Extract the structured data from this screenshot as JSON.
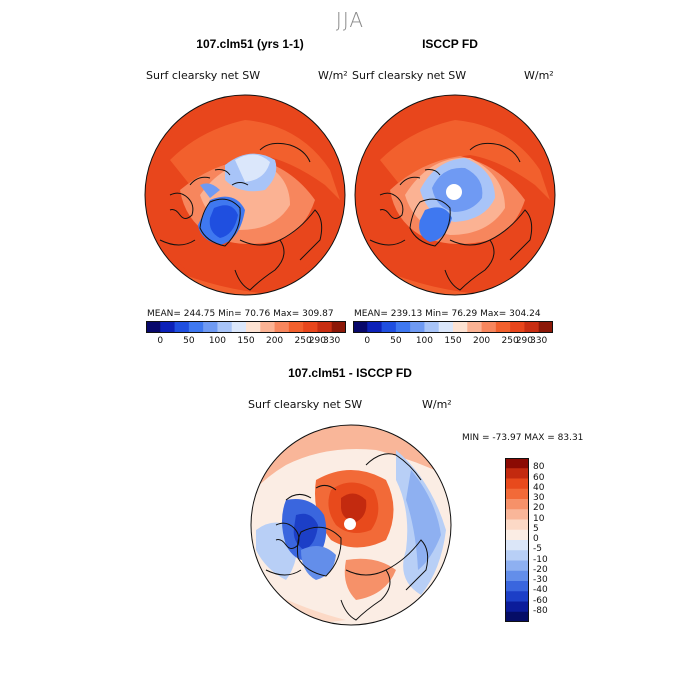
{
  "season": "JJA",
  "top_left": {
    "title": "107.clm51 (yrs 1-1)",
    "variable": "Surf clearsky net SW",
    "units": "W/m²",
    "stats": "MEAN= 244.75   Min=  70.76   Max= 309.87"
  },
  "top_right": {
    "title": "ISCCP FD",
    "variable": "Surf clearsky net SW",
    "units": "W/m²",
    "stats": "MEAN= 239.13   Min=  76.29   Max= 304.24"
  },
  "abs_colorbar": {
    "ticks": [
      "0",
      "50",
      "100",
      "150",
      "200",
      "250",
      "290",
      "330"
    ],
    "colors": [
      "#08086b",
      "#0c21b8",
      "#1f4fe0",
      "#3f78f0",
      "#6f9af3",
      "#a8c4f8",
      "#dbe7fb",
      "#fde2d2",
      "#fbb293",
      "#f7865d",
      "#f2602d",
      "#e8461c",
      "#c82e12",
      "#8c1808"
    ]
  },
  "diff": {
    "title": "107.clm51 - ISCCP FD",
    "variable": "Surf clearsky net SW",
    "units": "W/m²",
    "minmax": "MIN = -73.97  MAX =  83.31"
  },
  "diff_colorbar": {
    "labels": [
      "80",
      "60",
      "40",
      "30",
      "20",
      "10",
      "5",
      "0",
      "-5",
      "-10",
      "-20",
      "-30",
      "-40",
      "-60",
      "-80"
    ],
    "colors": [
      "#8b0a03",
      "#c32a0f",
      "#e84a1c",
      "#f26a38",
      "#f69169",
      "#f9b699",
      "#fcd9c6",
      "#fbede4",
      "#dbe6f8",
      "#b8cff6",
      "#8eb0f1",
      "#638eea",
      "#3a66de",
      "#1c3fc7",
      "#0b1c9a",
      "#050d66"
    ]
  }
}
